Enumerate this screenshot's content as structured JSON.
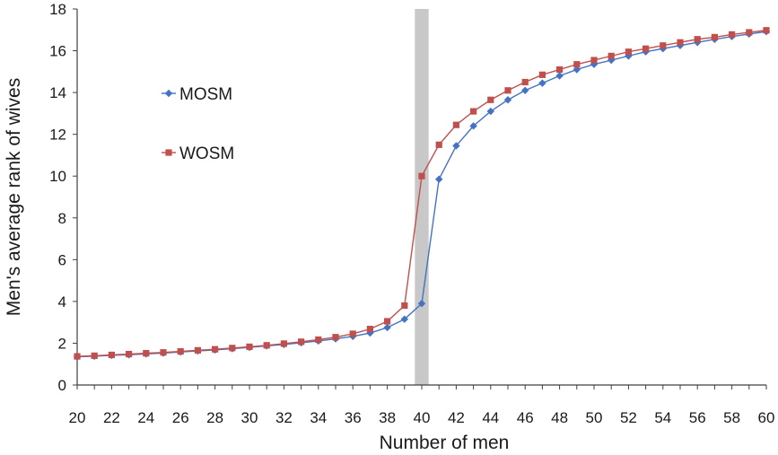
{
  "chart_data": {
    "type": "line",
    "title": "",
    "xlabel": "Number of men",
    "ylabel": "Men's average rank of wives",
    "xlim": [
      20,
      60
    ],
    "ylim": [
      0,
      18
    ],
    "x_ticks": [
      "20",
      "22",
      "24",
      "26",
      "28",
      "30",
      "32",
      "34",
      "36",
      "38",
      "40",
      "42",
      "44",
      "46",
      "48",
      "50",
      "52",
      "54",
      "56",
      "58",
      "60"
    ],
    "y_ticks": [
      "0",
      "2",
      "4",
      "6",
      "8",
      "10",
      "12",
      "14",
      "16",
      "18"
    ],
    "grid": false,
    "legend_position": "upper-left inside",
    "highlight_band": [
      39.6,
      40.4
    ],
    "highlight_color": "#c8c8c8",
    "x": [
      20,
      21,
      22,
      23,
      24,
      25,
      26,
      27,
      28,
      29,
      30,
      31,
      32,
      33,
      34,
      35,
      36,
      37,
      38,
      39,
      40,
      41,
      42,
      43,
      44,
      45,
      46,
      47,
      48,
      49,
      50,
      51,
      52,
      53,
      54,
      55,
      56,
      57,
      58,
      59,
      60
    ],
    "series": [
      {
        "name": "MOSM",
        "color": "#4472c4",
        "marker": "diamond",
        "values": [
          1.35,
          1.38,
          1.42,
          1.45,
          1.49,
          1.53,
          1.58,
          1.63,
          1.68,
          1.74,
          1.8,
          1.87,
          1.94,
          2.02,
          2.11,
          2.21,
          2.33,
          2.49,
          2.75,
          3.15,
          3.9,
          9.85,
          11.45,
          12.4,
          13.1,
          13.65,
          14.1,
          14.45,
          14.8,
          15.1,
          15.35,
          15.55,
          15.75,
          15.95,
          16.1,
          16.25,
          16.4,
          16.55,
          16.68,
          16.8,
          16.92
        ]
      },
      {
        "name": "WOSM",
        "color": "#c0504d",
        "marker": "square",
        "values": [
          1.37,
          1.4,
          1.44,
          1.48,
          1.52,
          1.56,
          1.61,
          1.66,
          1.71,
          1.77,
          1.83,
          1.9,
          1.98,
          2.07,
          2.17,
          2.29,
          2.45,
          2.68,
          3.05,
          3.8,
          10.0,
          11.5,
          12.45,
          13.1,
          13.65,
          14.1,
          14.5,
          14.85,
          15.1,
          15.35,
          15.55,
          15.75,
          15.95,
          16.1,
          16.25,
          16.4,
          16.55,
          16.65,
          16.78,
          16.88,
          16.98
        ]
      }
    ]
  }
}
